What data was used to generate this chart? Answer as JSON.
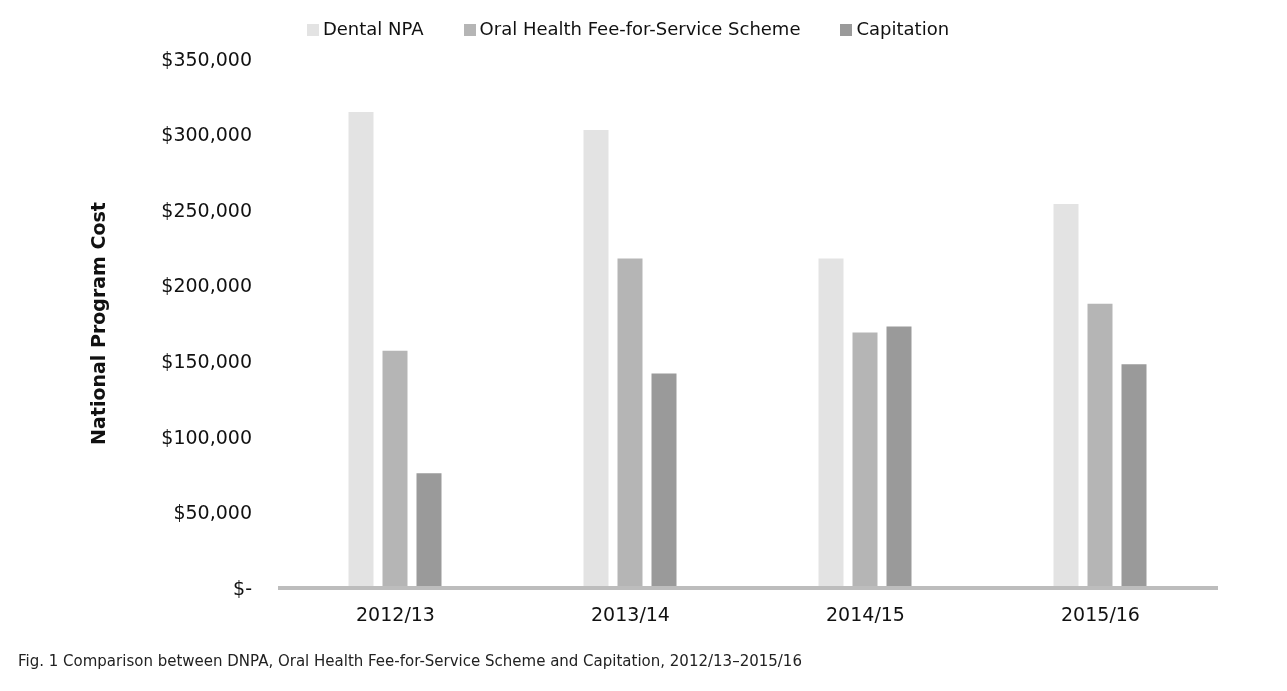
{
  "chart_data": {
    "type": "bar",
    "categories": [
      "2012/13",
      "2013/14",
      "2014/15",
      "2015/16"
    ],
    "series": [
      {
        "name": "Dental NPA",
        "color": "#e3e3e3",
        "values": [
          315000,
          303000,
          218000,
          254000
        ]
      },
      {
        "name": "Oral Health Fee-for-Service Scheme",
        "color": "#b5b5b5",
        "values": [
          157000,
          218000,
          169000,
          188000
        ]
      },
      {
        "name": "Capitation",
        "color": "#9a9a9a",
        "values": [
          76000,
          142000,
          173000,
          148000
        ]
      }
    ],
    "ylabel": "National Program Cost",
    "ylim": [
      0,
      350000
    ],
    "yticks": [
      {
        "value": 0,
        "label": "$-"
      },
      {
        "value": 50000,
        "label": "$50,000"
      },
      {
        "value": 100000,
        "label": "$100,000"
      },
      {
        "value": 150000,
        "label": "$150,000"
      },
      {
        "value": 200000,
        "label": "$200,000"
      },
      {
        "value": 250000,
        "label": "$250,000"
      },
      {
        "value": 300000,
        "label": "$300,000"
      },
      {
        "value": 350000,
        "label": "$350,000"
      }
    ],
    "grid": false,
    "legend": "top",
    "annotations": [
      "Fig. 1  Comparison between DNPA, Oral Health Fee-for-Service Scheme and Capitation, 2012/13–2015/16"
    ]
  }
}
